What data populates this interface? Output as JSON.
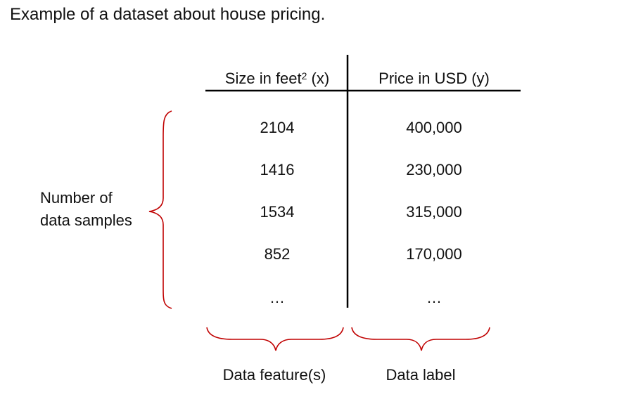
{
  "title": "Example of a dataset about house pricing.",
  "table": {
    "feature_header": {
      "prefix": "Size in feet",
      "superscript": "2",
      "suffix": " (x)"
    },
    "label_header": "Price in USD (y)",
    "rows": [
      {
        "x": "2104",
        "y": "400,000"
      },
      {
        "x": "1416",
        "y": "230,000"
      },
      {
        "x": "1534",
        "y": "315,000"
      },
      {
        "x": "852",
        "y": "170,000"
      },
      {
        "x": "…",
        "y": "…"
      }
    ]
  },
  "annotations": {
    "rows_brace_label_line1": "Number of",
    "rows_brace_label_line2": "data samples",
    "feature_brace_label": "Data feature(s)",
    "label_brace_label": "Data label",
    "brace_color": "#c00000"
  }
}
